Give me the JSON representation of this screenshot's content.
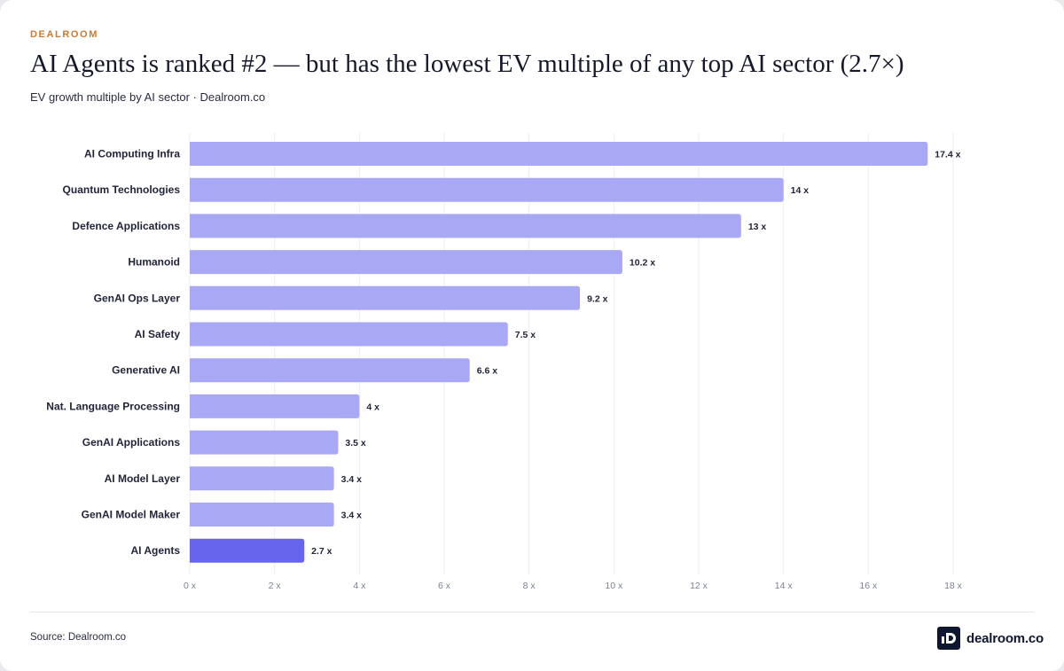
{
  "header": {
    "brand_tag": "DEALROOM",
    "title": "AI Agents is ranked #2 — but has the lowest EV multiple of any top AI sector (2.7×)",
    "subtitle": "EV growth multiple by AI sector · Dealroom.co"
  },
  "footer": {
    "source": "Source: Dealroom.co",
    "logo_text": "dealroom.co"
  },
  "colors": {
    "bar": "#a9a8f5",
    "bar_highlight": "#6764ee",
    "grid": "#eceef3",
    "label": "#22253a",
    "tick": "#7d8194"
  },
  "chart_data": {
    "type": "bar",
    "orientation": "horizontal",
    "categories": [
      "AI Computing Infra",
      "Quantum Technologies",
      "Defence Applications",
      "Humanoid",
      "GenAI Ops Layer",
      "AI Safety",
      "Generative AI",
      "Nat. Language Processing",
      "GenAI Applications",
      "AI Model Layer",
      "GenAI Model Maker",
      "AI Agents"
    ],
    "values": [
      17.4,
      14,
      13,
      10.2,
      9.2,
      7.5,
      6.6,
      4,
      3.5,
      3.4,
      3.4,
      2.7
    ],
    "value_labels": [
      "17.4 x",
      "14 x",
      "13 x",
      "10.2 x",
      "9.2 x",
      "7.5 x",
      "6.6 x",
      "4 x",
      "3.5 x",
      "3.4 x",
      "3.4 x",
      "2.7 x"
    ],
    "highlight": "AI Agents",
    "xlim": [
      0,
      18
    ],
    "xticks": [
      0,
      2,
      4,
      6,
      8,
      10,
      12,
      14,
      16,
      18
    ],
    "xtick_labels": [
      "0 x",
      "2 x",
      "4 x",
      "6 x",
      "8 x",
      "10 x",
      "12 x",
      "14 x",
      "16 x",
      "18 x"
    ],
    "grid": true,
    "legend": false
  }
}
